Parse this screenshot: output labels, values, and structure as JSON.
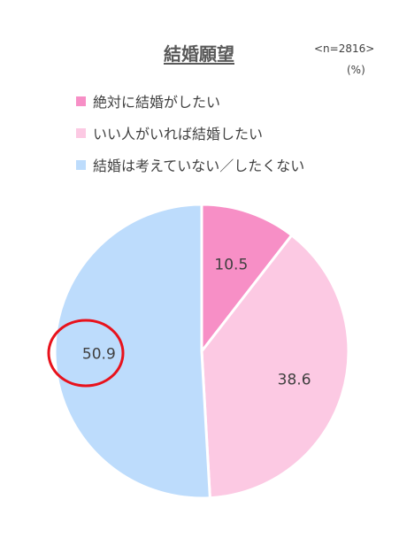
{
  "chart_data": {
    "type": "pie",
    "title": "結婚願望",
    "sample_note": "<n=2816>",
    "unit": "(%)",
    "legend_position": "top",
    "categories": [
      "絶対に結婚がしたい",
      "いい人がいれば結婚したい",
      "結婚は考えていない／したくない"
    ],
    "values": [
      10.5,
      38.6,
      50.9
    ],
    "colors": [
      "#f78fc6",
      "#fcc9e3",
      "#bddcfc"
    ],
    "highlighted_slice": 2,
    "highlight_color": "#e8121c"
  }
}
